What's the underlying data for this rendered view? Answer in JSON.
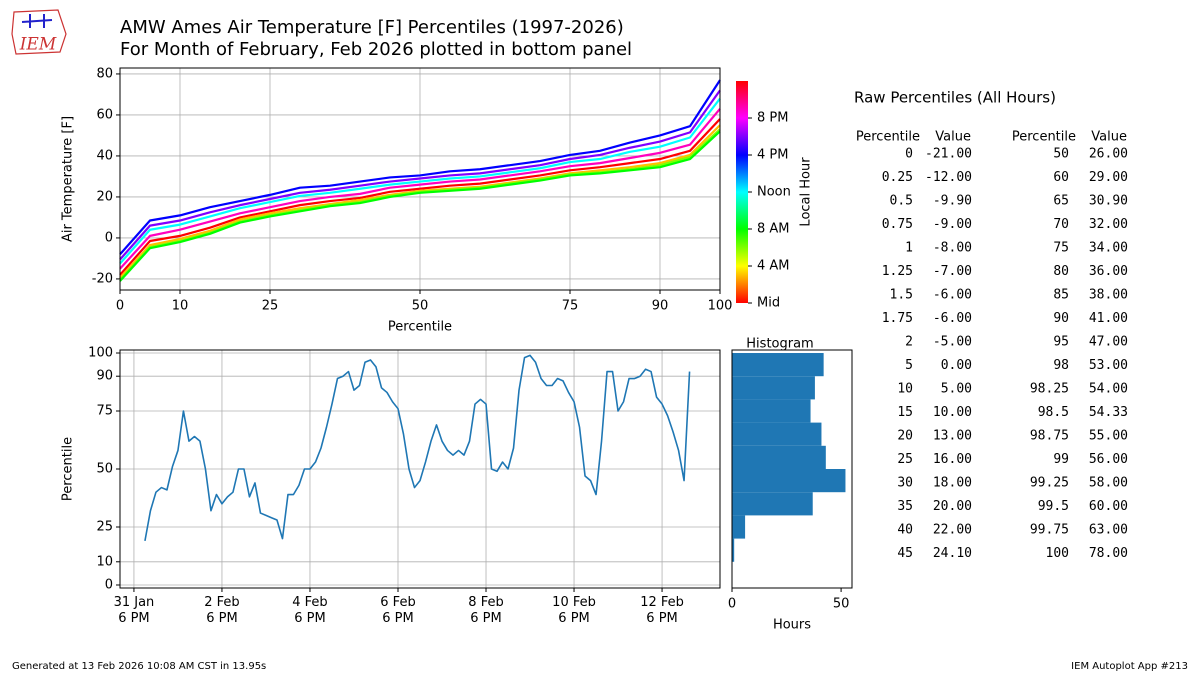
{
  "logo": "IEM",
  "title": "AMW Ames Air Temperature [F] Percentiles (1997-2026)",
  "subtitle": "For Month of February, Feb 2026 plotted in bottom panel",
  "chart_data": [
    {
      "type": "line",
      "xlabel": "Percentile",
      "ylabel": "Air Temperature [F]",
      "x": [
        0,
        5,
        10,
        15,
        20,
        25,
        30,
        35,
        40,
        45,
        50,
        55,
        60,
        65,
        70,
        75,
        80,
        85,
        90,
        95,
        100
      ],
      "xlim": [
        0,
        100
      ],
      "xticks": [
        0,
        10,
        25,
        50,
        75,
        90,
        100
      ],
      "ylim": [
        -25.4,
        82.9
      ],
      "yticks": [
        -20,
        0,
        20,
        40,
        60,
        80
      ],
      "grid": true,
      "series": [
        {
          "color": "#ff0000",
          "values": [
            -18,
            -1.5,
            1,
            5,
            10,
            13,
            16,
            18,
            19.5,
            22.5,
            24,
            25.5,
            26.5,
            28.5,
            30.5,
            33,
            34.5,
            36.5,
            38.5,
            42.5,
            58
          ]
        },
        {
          "color": "#ffbf00",
          "values": [
            -19.5,
            -3.5,
            -0.5,
            3.5,
            9,
            12,
            14.5,
            16.5,
            18.5,
            21,
            23,
            24,
            25,
            27,
            29,
            31.5,
            33,
            34.5,
            36.5,
            40.5,
            55
          ]
        },
        {
          "color": "#80ff00",
          "values": [
            -20.5,
            -4.5,
            -1.5,
            2.5,
            8,
            11,
            13.5,
            16,
            17.5,
            20.5,
            22.5,
            23.5,
            24.5,
            26.5,
            28.5,
            31,
            32,
            33.5,
            35.5,
            39.5,
            53
          ]
        },
        {
          "color": "#00ff00",
          "values": [
            -21,
            -5,
            -2,
            2,
            7.5,
            10.5,
            13,
            15.5,
            17,
            20,
            22,
            23,
            24,
            26,
            28,
            30.5,
            31.5,
            33,
            34.5,
            38.5,
            52
          ]
        },
        {
          "color": "#00ffff",
          "values": [
            -12.5,
            4,
            6.5,
            10.5,
            14.5,
            17.5,
            20.5,
            22,
            24,
            26,
            27.5,
            29,
            30,
            32,
            34,
            37,
            38.5,
            42,
            44.5,
            49,
            68
          ]
        },
        {
          "color": "#0000ff",
          "values": [
            -8,
            8.5,
            11,
            15,
            18,
            21,
            24.5,
            25.5,
            27.5,
            29.5,
            30.5,
            32.5,
            33.5,
            35.5,
            37.5,
            40.5,
            42.5,
            46.5,
            50,
            54.5,
            77
          ]
        },
        {
          "color": "#8000ff",
          "values": [
            -10.5,
            6,
            8.5,
            12.5,
            16,
            19,
            22,
            23.5,
            25.5,
            27.5,
            29,
            30.5,
            31.5,
            33.5,
            35.5,
            38.5,
            40.5,
            44,
            47,
            51.5,
            72
          ]
        },
        {
          "color": "#ff00bf",
          "values": [
            -15,
            1,
            4,
            8,
            12,
            15,
            18,
            20,
            21.5,
            24.5,
            26,
            27.5,
            28.5,
            30.5,
            32.5,
            35,
            36.5,
            39,
            41.5,
            45.5,
            63
          ]
        }
      ],
      "colorbar": {
        "label": "Local Hour",
        "lim": [
          0,
          24
        ],
        "ticks": [
          {
            "value": 0,
            "label": "Mid"
          },
          {
            "value": 4,
            "label": "4 AM"
          },
          {
            "value": 8,
            "label": "8 AM"
          },
          {
            "value": 12,
            "label": "Noon"
          },
          {
            "value": 16,
            "label": "4 PM"
          },
          {
            "value": 20,
            "label": "8 PM"
          }
        ]
      }
    },
    {
      "type": "line",
      "ylabel": "Percentile",
      "x": [
        "2026-02-01T00:00",
        "2026-02-01T03:00",
        "2026-02-01T06:00",
        "2026-02-01T09:00",
        "2026-02-01T12:00",
        "2026-02-01T15:00",
        "2026-02-01T18:00",
        "2026-02-01T21:00",
        "2026-02-02T00:00",
        "2026-02-02T03:00",
        "2026-02-02T06:00",
        "2026-02-02T09:00",
        "2026-02-02T12:00",
        "2026-02-02T15:00",
        "2026-02-02T18:00",
        "2026-02-02T21:00",
        "2026-02-03T00:00",
        "2026-02-03T03:00",
        "2026-02-03T06:00",
        "2026-02-03T09:00",
        "2026-02-03T12:00",
        "2026-02-03T15:00",
        "2026-02-03T18:00",
        "2026-02-03T21:00",
        "2026-02-04T00:00",
        "2026-02-04T03:00",
        "2026-02-04T06:00",
        "2026-02-04T09:00",
        "2026-02-04T12:00",
        "2026-02-04T15:00",
        "2026-02-04T18:00",
        "2026-02-04T21:00",
        "2026-02-05T00:00",
        "2026-02-05T03:00",
        "2026-02-05T06:00",
        "2026-02-05T09:00",
        "2026-02-05T12:00",
        "2026-02-05T15:00",
        "2026-02-05T18:00",
        "2026-02-05T21:00",
        "2026-02-06T00:00",
        "2026-02-06T03:00",
        "2026-02-06T06:00",
        "2026-02-06T09:00",
        "2026-02-06T12:00",
        "2026-02-06T15:00",
        "2026-02-06T18:00",
        "2026-02-06T21:00",
        "2026-02-07T00:00",
        "2026-02-07T03:00",
        "2026-02-07T06:00",
        "2026-02-07T09:00",
        "2026-02-07T12:00",
        "2026-02-07T15:00",
        "2026-02-07T18:00",
        "2026-02-07T21:00",
        "2026-02-08T00:00",
        "2026-02-08T03:00",
        "2026-02-08T06:00",
        "2026-02-08T09:00",
        "2026-02-08T12:00",
        "2026-02-08T15:00",
        "2026-02-08T18:00",
        "2026-02-08T21:00",
        "2026-02-09T00:00",
        "2026-02-09T03:00",
        "2026-02-09T06:00",
        "2026-02-09T09:00",
        "2026-02-09T12:00",
        "2026-02-09T15:00",
        "2026-02-09T18:00",
        "2026-02-09T21:00",
        "2026-02-10T00:00",
        "2026-02-10T03:00",
        "2026-02-10T06:00",
        "2026-02-10T09:00",
        "2026-02-10T12:00",
        "2026-02-10T15:00",
        "2026-02-10T18:00",
        "2026-02-10T21:00",
        "2026-02-11T00:00",
        "2026-02-11T03:00",
        "2026-02-11T06:00",
        "2026-02-11T09:00",
        "2026-02-11T12:00",
        "2026-02-11T15:00",
        "2026-02-11T18:00",
        "2026-02-11T21:00",
        "2026-02-12T00:00",
        "2026-02-12T03:00",
        "2026-02-12T06:00",
        "2026-02-12T09:00",
        "2026-02-12T12:00",
        "2026-02-12T15:00",
        "2026-02-12T18:00",
        "2026-02-12T21:00",
        "2026-02-13T00:00",
        "2026-02-13T03:00",
        "2026-02-13T06:00",
        "2026-02-13T09:00"
      ],
      "series": [
        {
          "color": "#1f77b4",
          "values": [
            19,
            32,
            40,
            42,
            41,
            51,
            58,
            75,
            62,
            64,
            62,
            50,
            32,
            39,
            35,
            38,
            40,
            50,
            50,
            38,
            44,
            31,
            30,
            29,
            28,
            20,
            39,
            39,
            43,
            50,
            50,
            53,
            59,
            68,
            78,
            89,
            90,
            92,
            84,
            86,
            96,
            97,
            94,
            85,
            83,
            79,
            76,
            65,
            50,
            42,
            45,
            53,
            62,
            69,
            62,
            58,
            56,
            58,
            56,
            62,
            78,
            80,
            78,
            50,
            49,
            53,
            50,
            59,
            84,
            98,
            99,
            96,
            89,
            86,
            86,
            89,
            88,
            83,
            79,
            68,
            47,
            45,
            39,
            62,
            92,
            92,
            75,
            79,
            89,
            89,
            90,
            93,
            92,
            81,
            78,
            73,
            66,
            58,
            45,
            92
          ]
        }
      ],
      "xlim": [
        "2026-01-31T10:24",
        "2026-02-14T01:36"
      ],
      "xticks": [
        {
          "value": "2026-01-31T18:00",
          "label": "31 Jan\n6 PM"
        },
        {
          "value": "2026-02-02T18:00",
          "label": "2 Feb\n6 PM"
        },
        {
          "value": "2026-02-04T18:00",
          "label": "4 Feb\n6 PM"
        },
        {
          "value": "2026-02-06T18:00",
          "label": "6 Feb\n6 PM"
        },
        {
          "value": "2026-02-08T18:00",
          "label": "8 Feb\n6 PM"
        },
        {
          "value": "2026-02-10T18:00",
          "label": "10 Feb\n6 PM"
        },
        {
          "value": "2026-02-12T18:00",
          "label": "12 Feb\n6 PM"
        }
      ],
      "ylim": [
        -1.3,
        101.3
      ],
      "yticks": [
        0,
        10,
        25,
        50,
        75,
        90,
        100
      ],
      "grid": true
    },
    {
      "type": "histogram",
      "orientation": "horizontal",
      "title": "Histogram",
      "xlabel": "Hours",
      "bins": [
        0,
        10,
        20,
        30,
        40,
        50,
        60,
        70,
        80,
        90,
        100
      ],
      "counts": [
        0,
        1,
        6,
        37,
        52,
        43,
        41,
        36,
        38,
        42
      ],
      "color": "#1f77b4",
      "xlim": [
        0,
        55
      ],
      "xticks": [
        0,
        50
      ],
      "ylim": [
        -1.3,
        101.3
      ]
    }
  ],
  "table": {
    "title": "Raw Percentiles (All Hours)",
    "columns": [
      "Percentile",
      "Value",
      "Percentile",
      "Value"
    ],
    "rows": [
      [
        "0",
        "-21.00",
        "50",
        "26.00"
      ],
      [
        "0.25",
        "-12.00",
        "60",
        "29.00"
      ],
      [
        "0.5",
        "-9.90",
        "65",
        "30.90"
      ],
      [
        "0.75",
        "-9.00",
        "70",
        "32.00"
      ],
      [
        "1",
        "-8.00",
        "75",
        "34.00"
      ],
      [
        "1.25",
        "-7.00",
        "80",
        "36.00"
      ],
      [
        "1.5",
        "-6.00",
        "85",
        "38.00"
      ],
      [
        "1.75",
        "-6.00",
        "90",
        "41.00"
      ],
      [
        "2",
        "-5.00",
        "95",
        "47.00"
      ],
      [
        "5",
        "0.00",
        "98",
        "53.00"
      ],
      [
        "10",
        "5.00",
        "98.25",
        "54.00"
      ],
      [
        "15",
        "10.00",
        "98.5",
        "54.33"
      ],
      [
        "20",
        "13.00",
        "98.75",
        "55.00"
      ],
      [
        "25",
        "16.00",
        "99",
        "56.00"
      ],
      [
        "30",
        "18.00",
        "99.25",
        "58.00"
      ],
      [
        "35",
        "20.00",
        "99.5",
        "60.00"
      ],
      [
        "40",
        "22.00",
        "99.75",
        "63.00"
      ],
      [
        "45",
        "24.10",
        "100",
        "78.00"
      ]
    ]
  },
  "footer": {
    "left": "Generated at 13 Feb 2026 10:08 AM CST in 13.95s",
    "right": "IEM Autoplot App #213"
  }
}
